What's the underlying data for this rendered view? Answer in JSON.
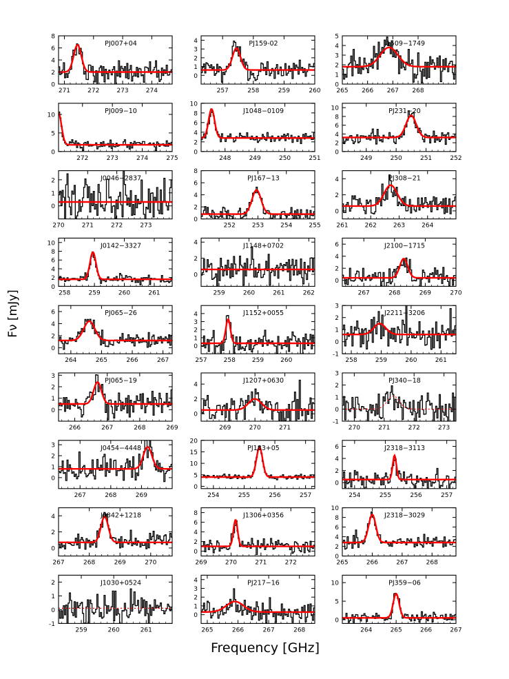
{
  "figure": {
    "ylabel": "Fν [mJy]",
    "xlabel": "Frequency [GHz]"
  },
  "colors": {
    "data": "#000000",
    "fit": "#ff0000",
    "background": "#ffffff"
  },
  "chart_data": [
    {
      "type": "line",
      "title": "PJ007+04",
      "xlim": [
        270.8,
        274.7
      ],
      "xticks": [
        271,
        272,
        273,
        274
      ],
      "ylim": [
        0,
        8
      ],
      "yticks": [
        0,
        2,
        4,
        6,
        8
      ],
      "baseline": 2.0,
      "peak": 4.5,
      "center": 271.45,
      "sigma": 0.13,
      "noise": 0.9,
      "fit_style": "solid"
    },
    {
      "type": "line",
      "title": "PJ159-02",
      "xlim": [
        256.3,
        260.0
      ],
      "xticks": [
        257,
        258,
        259,
        260
      ],
      "ylim": [
        -1,
        4.5
      ],
      "yticks": [
        0,
        1,
        2,
        3,
        4
      ],
      "baseline": 0.6,
      "peak": 2.5,
      "center": 257.45,
      "sigma": 0.13,
      "noise": 0.6,
      "fit_style": "solid"
    },
    {
      "type": "line",
      "title": "J1509−1749",
      "xlim": [
        265.0,
        269.5
      ],
      "xticks": [
        265,
        266,
        267,
        268
      ],
      "ylim": [
        0,
        5
      ],
      "yticks": [
        0,
        1,
        2,
        3,
        4,
        5
      ],
      "baseline": 1.8,
      "peak": 2.0,
      "center": 266.85,
      "sigma": 0.35,
      "noise": 0.8,
      "fit_style": "solid"
    },
    {
      "type": "line",
      "title": "PJ009−10",
      "xlim": [
        271.2,
        275.0
      ],
      "xticks": [
        272,
        273,
        274,
        275
      ],
      "ylim": [
        0,
        13
      ],
      "yticks": [
        0,
        5,
        10
      ],
      "baseline": 1.8,
      "peak": 8.5,
      "center": 271.2,
      "sigma": 0.1,
      "noise": 0.6,
      "fit_style": "solid"
    },
    {
      "type": "line",
      "title": "J1048−0109",
      "xlim": [
        247.2,
        251.0
      ],
      "xticks": [
        248,
        249,
        250,
        251
      ],
      "ylim": [
        0,
        10
      ],
      "yticks": [
        0,
        2,
        4,
        6,
        8,
        10
      ],
      "baseline": 2.8,
      "peak": 6.0,
      "center": 247.55,
      "sigma": 0.1,
      "noise": 0.5,
      "fit_style": "solid"
    },
    {
      "type": "line",
      "title": "PJ231−20",
      "xlim": [
        248.2,
        252.0
      ],
      "xticks": [
        249,
        250,
        251,
        252
      ],
      "ylim": [
        0,
        11
      ],
      "yticks": [
        0,
        2,
        4,
        6,
        8,
        10
      ],
      "baseline": 3.2,
      "peak": 5.0,
      "center": 250.5,
      "sigma": 0.17,
      "noise": 0.8,
      "fit_style": "solid"
    },
    {
      "type": "line",
      "title": "J0046−2837",
      "xlim": [
        270.0,
        273.9
      ],
      "xticks": [
        270,
        271,
        272,
        273
      ],
      "ylim": [
        -1,
        2.7
      ],
      "yticks": [
        0,
        1,
        2
      ],
      "baseline": 0.3,
      "peak": 0,
      "center": 272.0,
      "sigma": 0.2,
      "noise": 0.9,
      "fit_style": "solid"
    },
    {
      "type": "line",
      "title": "PJ167−13",
      "xlim": [
        251.0,
        255.0
      ],
      "xticks": [
        252,
        253,
        254,
        255
      ],
      "ylim": [
        0,
        8
      ],
      "yticks": [
        0,
        2,
        4,
        6,
        8
      ],
      "baseline": 0.8,
      "peak": 4.0,
      "center": 252.95,
      "sigma": 0.16,
      "noise": 0.5,
      "fit_style": "solid"
    },
    {
      "type": "line",
      "title": "PJ308−21",
      "xlim": [
        261.0,
        265.0
      ],
      "xticks": [
        261,
        262,
        263,
        264
      ],
      "ylim": [
        -1,
        5
      ],
      "yticks": [
        0,
        2,
        4
      ],
      "baseline": 0.6,
      "peak": 2.6,
      "center": 262.7,
      "sigma": 0.23,
      "noise": 0.7,
      "fit_style": "solid"
    },
    {
      "type": "line",
      "title": "J0142−3327",
      "xlim": [
        257.8,
        261.6
      ],
      "xticks": [
        258,
        259,
        260,
        261
      ],
      "ylim": [
        0,
        11
      ],
      "yticks": [
        0,
        2,
        4,
        6,
        8,
        10
      ],
      "baseline": 1.6,
      "peak": 6.2,
      "center": 258.95,
      "sigma": 0.1,
      "noise": 0.6,
      "fit_style": "solid"
    },
    {
      "type": "line",
      "title": "J1148+0702",
      "xlim": [
        258.4,
        262.2
      ],
      "xticks": [
        259,
        260,
        261,
        262
      ],
      "ylim": [
        -1.5,
        4.5
      ],
      "yticks": [
        0,
        2,
        4
      ],
      "baseline": 0.6,
      "peak": 0,
      "center": 260.0,
      "sigma": 0.2,
      "noise": 1.0,
      "fit_style": "solid"
    },
    {
      "type": "line",
      "title": "J2100−1715",
      "xlim": [
        266.3,
        270.0
      ],
      "xticks": [
        267,
        268,
        269,
        270
      ],
      "ylim": [
        -1,
        7
      ],
      "yticks": [
        0,
        2,
        4,
        6
      ],
      "baseline": 0.4,
      "peak": 3.2,
      "center": 268.3,
      "sigma": 0.13,
      "noise": 0.8,
      "fit_style": "solid"
    },
    {
      "type": "line",
      "title": "PJ065−26",
      "xlim": [
        263.6,
        267.3
      ],
      "xticks": [
        264,
        265,
        266,
        267
      ],
      "ylim": [
        -1,
        7
      ],
      "yticks": [
        0,
        2,
        4,
        6
      ],
      "baseline": 1.2,
      "peak": 3.2,
      "center": 264.6,
      "sigma": 0.18,
      "noise": 0.7,
      "fit_style": "solid"
    },
    {
      "type": "line",
      "title": "J1152+0055",
      "xlim": [
        257.0,
        261.0
      ],
      "xticks": [
        257,
        258,
        259,
        260
      ],
      "ylim": [
        -1,
        5
      ],
      "yticks": [
        0,
        1,
        2,
        3,
        4
      ],
      "baseline": 0.3,
      "peak": 3.0,
      "center": 257.95,
      "sigma": 0.08,
      "noise": 0.7,
      "fit_style": "solid"
    },
    {
      "type": "line",
      "title": "J2211−3206",
      "xlim": [
        257.7,
        261.5
      ],
      "xticks": [
        258,
        259,
        260,
        261
      ],
      "ylim": [
        -1,
        3
      ],
      "yticks": [
        -1,
        0,
        1,
        2,
        3
      ],
      "baseline": 0.6,
      "peak": 0.9,
      "center": 258.95,
      "sigma": 0.2,
      "noise": 0.7,
      "fit_style": "solid"
    },
    {
      "type": "line",
      "title": "PJ065−19",
      "xlim": [
        265.5,
        269.0
      ],
      "xticks": [
        266,
        267,
        268,
        269
      ],
      "ylim": [
        -1,
        3.2
      ],
      "yticks": [
        0,
        1,
        2,
        3
      ],
      "baseline": 0.5,
      "peak": 1.9,
      "center": 266.7,
      "sigma": 0.12,
      "noise": 0.6,
      "fit_style": "solid"
    },
    {
      "type": "line",
      "title": "J1207+0630",
      "xlim": [
        268.2,
        272.0
      ],
      "xticks": [
        269,
        270,
        271
      ],
      "ylim": [
        -1,
        5.5
      ],
      "yticks": [
        0,
        2,
        4
      ],
      "baseline": 0.5,
      "peak": 1.5,
      "center": 270.0,
      "sigma": 0.22,
      "noise": 1.0,
      "fit_style": "solid"
    },
    {
      "type": "line",
      "title": "PJ340−18",
      "xlim": [
        269.6,
        273.4
      ],
      "xticks": [
        270,
        271,
        272,
        273
      ],
      "ylim": [
        -1,
        3
      ],
      "yticks": [
        -1,
        0,
        1,
        2,
        3
      ],
      "baseline": 0.0,
      "peak": 1.1,
      "center": 271.3,
      "sigma": 0.2,
      "noise": 0.6,
      "fit_style": "dotted"
    },
    {
      "type": "line",
      "title": "J0454−4448",
      "xlim": [
        266.3,
        270.0
      ],
      "xticks": [
        267,
        268,
        269
      ],
      "ylim": [
        -1,
        3.4
      ],
      "yticks": [
        0,
        1,
        2,
        3
      ],
      "baseline": 0.8,
      "peak": 2.0,
      "center": 269.2,
      "sigma": 0.14,
      "noise": 0.6,
      "fit_style": "solid"
    },
    {
      "type": "line",
      "title": "PJ183+05",
      "xlim": [
        253.6,
        257.3
      ],
      "xticks": [
        254,
        255,
        256,
        257
      ],
      "ylim": [
        -1,
        20
      ],
      "yticks": [
        0,
        5,
        10,
        15,
        20
      ],
      "baseline": 4.0,
      "peak": 13.0,
      "center": 255.5,
      "sigma": 0.1,
      "noise": 0.6,
      "fit_style": "solid"
    },
    {
      "type": "line",
      "title": "J2318−3113",
      "xlim": [
        253.6,
        257.3
      ],
      "xticks": [
        254,
        255,
        256,
        257
      ],
      "ylim": [
        -1,
        7
      ],
      "yticks": [
        0,
        2,
        4,
        6
      ],
      "baseline": 0.5,
      "peak": 4.0,
      "center": 255.3,
      "sigma": 0.06,
      "noise": 0.8,
      "fit_style": "solid"
    },
    {
      "type": "line",
      "title": "J0842+1218",
      "xlim": [
        267.0,
        270.7
      ],
      "xticks": [
        267,
        268,
        269,
        270
      ],
      "ylim": [
        -1,
        5
      ],
      "yticks": [
        0,
        2,
        4
      ],
      "baseline": 0.7,
      "peak": 3.2,
      "center": 268.5,
      "sigma": 0.12,
      "noise": 0.6,
      "fit_style": "solid"
    },
    {
      "type": "line",
      "title": "J1306+0356",
      "xlim": [
        269.0,
        272.8
      ],
      "xticks": [
        269,
        270,
        271,
        272
      ],
      "ylim": [
        -1,
        9
      ],
      "yticks": [
        0,
        2,
        4,
        6,
        8
      ],
      "baseline": 1.0,
      "peak": 5.5,
      "center": 270.15,
      "sigma": 0.07,
      "noise": 0.7,
      "fit_style": "solid"
    },
    {
      "type": "line",
      "title": "J2318−3029",
      "xlim": [
        265.0,
        268.8
      ],
      "xticks": [
        265,
        266,
        267,
        268
      ],
      "ylim": [
        0,
        10
      ],
      "yticks": [
        0,
        2,
        4,
        6,
        8,
        10
      ],
      "baseline": 2.8,
      "peak": 5.8,
      "center": 266.0,
      "sigma": 0.12,
      "noise": 0.7,
      "fit_style": "solid"
    },
    {
      "type": "line",
      "title": "J1030+0524",
      "xlim": [
        258.3,
        261.8
      ],
      "xticks": [
        259,
        260,
        261
      ],
      "ylim": [
        -1,
        2.5
      ],
      "yticks": [
        -1,
        0,
        1,
        2
      ],
      "baseline": 0.1,
      "peak": 0,
      "center": 260.0,
      "sigma": 0.2,
      "noise": 0.7,
      "fit_style": "dotted"
    },
    {
      "type": "line",
      "title": "PJ217−16",
      "xlim": [
        264.8,
        268.5
      ],
      "xticks": [
        265,
        266,
        267,
        268
      ],
      "ylim": [
        -1,
        4.5
      ],
      "yticks": [
        0,
        1,
        2,
        3,
        4
      ],
      "baseline": 0.3,
      "peak": 1.2,
      "center": 265.9,
      "sigma": 0.28,
      "noise": 0.7,
      "fit_style": "solid"
    },
    {
      "type": "line",
      "title": "PJ359−06",
      "xlim": [
        263.2,
        267.0
      ],
      "xticks": [
        264,
        265,
        266,
        267
      ],
      "ylim": [
        -1,
        12
      ],
      "yticks": [
        0,
        5,
        10
      ],
      "baseline": 0.5,
      "peak": 6.5,
      "center": 265.0,
      "sigma": 0.1,
      "noise": 0.7,
      "fit_style": "solid"
    }
  ]
}
